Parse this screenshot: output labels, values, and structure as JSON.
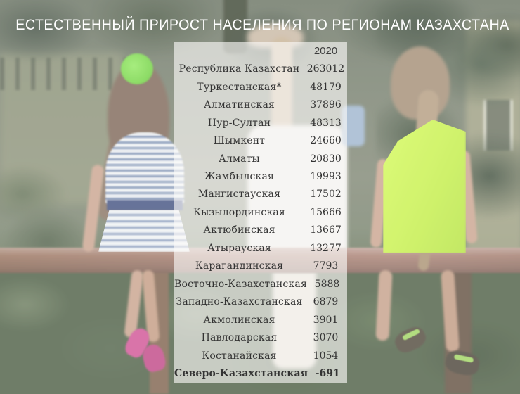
{
  "title": "ЕСТЕСТВЕННЫЙ ПРИРОСТ НАСЕЛЕНИЯ ПО РЕГИОНАМ КАЗАХСТАНА",
  "chart_data": {
    "type": "table",
    "title": "ЕСТЕСТВЕННЫЙ ПРИРОСТ НАСЕЛЕНИЯ ПО РЕГИОНАМ КАЗАХСТАНА",
    "year_header": "2020",
    "columns": [
      "",
      "2020"
    ],
    "categories": [
      "Республика Казахстан",
      "Туркестанская*",
      "Алматинская",
      "Нур-Султан",
      "Шымкент",
      "Алматы",
      "Жамбылская",
      "Мангистауская",
      "Кызылординская",
      "Актюбинская",
      "Атырауская",
      "Карагандинская",
      "Восточно-Казахстанская",
      "Западно-Казахстанская",
      "Акмолинская",
      "Павлодарская",
      "Костанайская",
      "Северо-Казахстанская"
    ],
    "values": [
      263012,
      48179,
      37896,
      48313,
      24660,
      20830,
      19993,
      17502,
      15666,
      13667,
      13277,
      7793,
      5888,
      6879,
      3901,
      3070,
      1054,
      -691
    ]
  },
  "colors": {
    "title-color": "#ffffff",
    "table-text": "#333333",
    "panel-bg": "rgba(252,251,248,0.63)"
  }
}
